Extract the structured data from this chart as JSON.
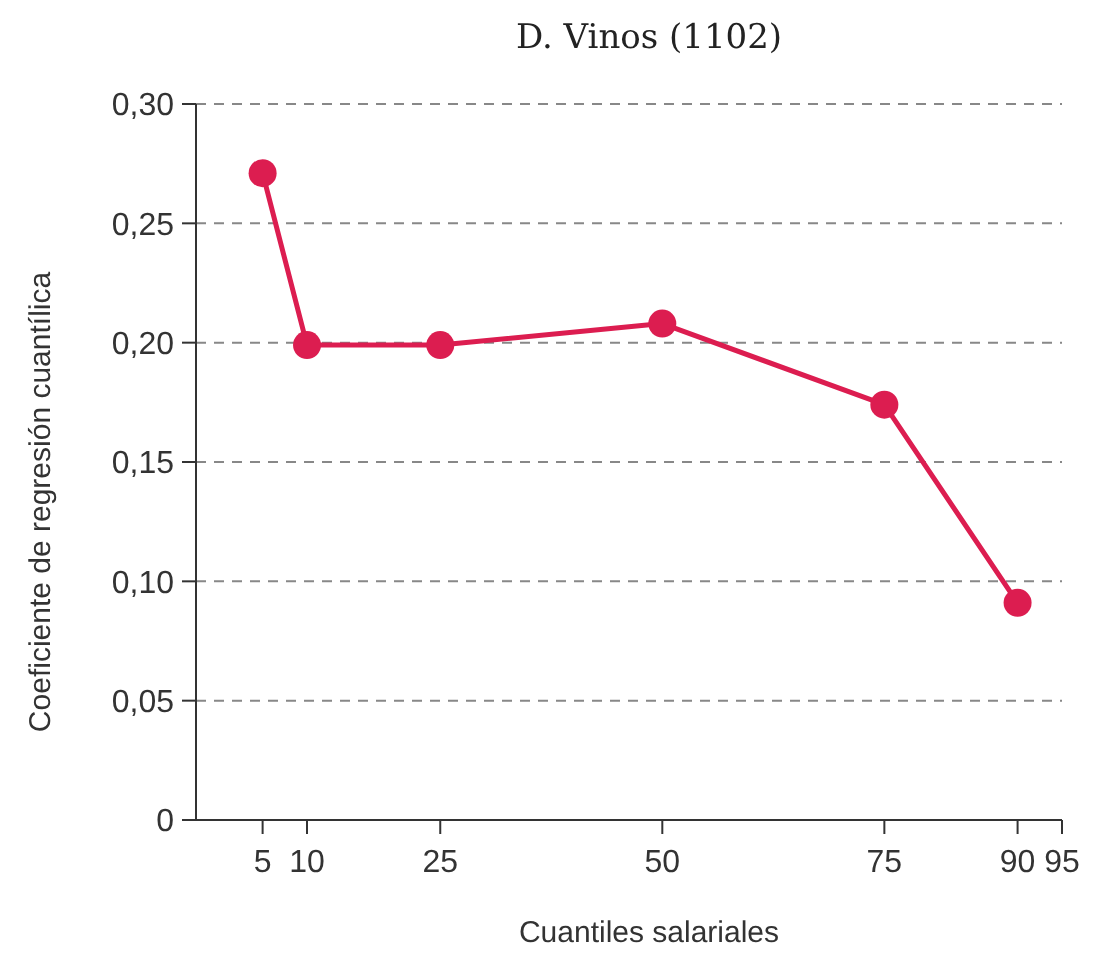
{
  "chart_data": {
    "type": "line",
    "title": "D. Vinos (1102)",
    "xlabel": "Cuantiles salariales",
    "ylabel": "Coeficiente de regresión cuantílica",
    "x": [
      5,
      10,
      25,
      50,
      75,
      90
    ],
    "series": [
      {
        "color": "#dc1d50",
        "values": [
          0.271,
          0.199,
          0.199,
          0.208,
          0.174,
          0.091
        ]
      }
    ],
    "xlim": [
      -2.5,
      95
    ],
    "xticks": [
      5,
      10,
      25,
      50,
      75,
      90,
      95
    ],
    "ylim": [
      0,
      0.3
    ],
    "yticks": [
      {
        "value": 0,
        "label": "0"
      },
      {
        "value": 0.05,
        "label": "0,05"
      },
      {
        "value": 0.1,
        "label": "0,10"
      },
      {
        "value": 0.15,
        "label": "0,15"
      },
      {
        "value": 0.2,
        "label": "0,20"
      },
      {
        "value": 0.25,
        "label": "0,25"
      },
      {
        "value": 0.3,
        "label": "0,30"
      }
    ],
    "grid": "y",
    "marker": "circle",
    "line_style": "solid"
  }
}
